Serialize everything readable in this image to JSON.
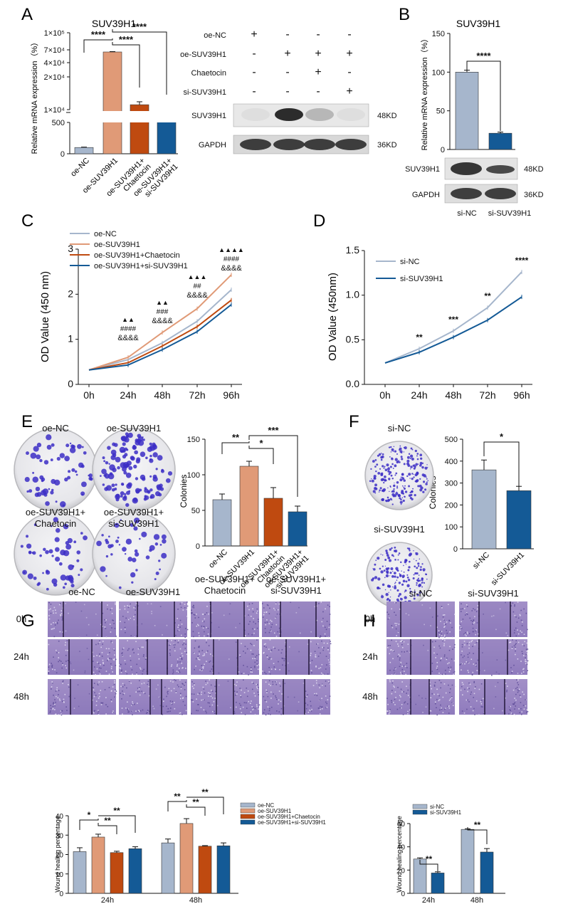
{
  "panel_labels": {
    "A": "A",
    "B": "B",
    "C": "C",
    "D": "D",
    "E": "E",
    "F": "F",
    "G": "G",
    "H": "H"
  },
  "colors": {
    "nc": "#a6b6cc",
    "oe": "#e09a77",
    "chae": "#bf4a10",
    "si": "#145a96",
    "blot": "#222222"
  },
  "stars": {
    "s1": "*",
    "s2": "**",
    "s3": "***",
    "s4": "****"
  },
  "chart_data": [
    {
      "id": "A_bar",
      "type": "bar",
      "title": "SUV39H1",
      "ylabel": "Relative mRNA expression（%）",
      "tick_labels": [
        "0",
        "500",
        "1×10⁴",
        "2×10⁴",
        "4×10⁴",
        "7×10⁴",
        "1×10⁵"
      ],
      "categories": [
        "oe-NC",
        "oe-SUV39H1",
        "oe-SUV39H1+ Chaetocin",
        "oe-SUV39H1+ si-SUV39H1"
      ],
      "values": [
        100,
        65000,
        11500,
        8500
      ],
      "errors": [
        6,
        800,
        900,
        300
      ],
      "significance": [
        "****",
        "****",
        "****"
      ]
    },
    {
      "id": "A_blot",
      "type": "table",
      "row_labels": [
        "oe-NC",
        "oe-SUV39H1",
        "Chaetocin",
        "si-SUV39H1"
      ],
      "matrix": [
        [
          "+",
          "-",
          "-",
          "-"
        ],
        [
          "-",
          "+",
          "+",
          "+"
        ],
        [
          "-",
          "-",
          "+",
          "-"
        ],
        [
          "-",
          "-",
          "-",
          "+"
        ]
      ],
      "bands": [
        "SUV39H1",
        "GAPDH"
      ],
      "sizes": [
        "48KD",
        "36KD"
      ],
      "suv_intensity": [
        0.05,
        0.95,
        0.25,
        0.05
      ]
    },
    {
      "id": "B_bar",
      "type": "bar",
      "title": "SUV39H1",
      "ylabel": "Relative mRNA expression（%）",
      "ylim": [
        0,
        150
      ],
      "yticks": [
        "0",
        "50",
        "100",
        "150"
      ],
      "categories": [
        "si-NC",
        "si-SUV39H1"
      ],
      "values": [
        100,
        21
      ],
      "errors": [
        2.5,
        1.5
      ],
      "significance": "****",
      "bands": [
        "SUV39H1",
        "GAPDH"
      ],
      "sizes": [
        "48KD",
        "36KD"
      ]
    },
    {
      "id": "C_line",
      "type": "line",
      "ylabel": "OD Value (450 nm)",
      "ylim": [
        0,
        3
      ],
      "yticks": [
        "0",
        "1",
        "2",
        "3"
      ],
      "x": [
        "0h",
        "24h",
        "48h",
        "72h",
        "96h"
      ],
      "series": [
        {
          "name": "oe-NC",
          "values": [
            0.32,
            0.55,
            0.92,
            1.4,
            2.1
          ]
        },
        {
          "name": "oe-SUV39H1",
          "values": [
            0.32,
            0.6,
            1.15,
            1.68,
            2.43
          ]
        },
        {
          "name": "oe-SUV39H1+Chaetocin",
          "values": [
            0.32,
            0.48,
            0.85,
            1.28,
            1.87
          ]
        },
        {
          "name": "oe-SUV39H1+si-SUV39H1",
          "values": [
            0.32,
            0.43,
            0.77,
            1.17,
            1.77
          ]
        }
      ],
      "annotations": [
        {
          "triangles": "▲▲",
          "hash": "####",
          "amp": "&&&&"
        },
        {
          "triangles": "▲▲",
          "hash": "###",
          "amp": "&&&&"
        },
        {
          "triangles": "▲▲▲",
          "hash": "##",
          "amp": "&&&&"
        },
        {
          "triangles": "▲▲▲▲",
          "hash": "####",
          "amp": "&&&&"
        }
      ]
    },
    {
      "id": "D_line",
      "type": "line",
      "ylabel": "OD Value (450nm)",
      "ylim": [
        0,
        1.5
      ],
      "yticks": [
        "0.0",
        "0.5",
        "1.0",
        "1.5"
      ],
      "x": [
        "0h",
        "24h",
        "48h",
        "72h",
        "96h"
      ],
      "series": [
        {
          "name": "si-NC",
          "values": [
            0.24,
            0.4,
            0.6,
            0.86,
            1.26
          ]
        },
        {
          "name": "si-SUV39H1",
          "values": [
            0.24,
            0.36,
            0.53,
            0.72,
            0.98
          ]
        }
      ],
      "significance": [
        "**",
        "***",
        "**",
        "****"
      ]
    },
    {
      "id": "E_bar",
      "type": "bar",
      "ylabel": "Colonies",
      "ylim": [
        0,
        150
      ],
      "yticks": [
        "0",
        "50",
        "100",
        "150"
      ],
      "categories": [
        "oe-NC",
        "oe-SUV39H1",
        "oe-SUV39H1+ Chaetocin",
        "oe-SUV39H1+ si-SUV39H1"
      ],
      "values": [
        65,
        112,
        67,
        48
      ],
      "errors": [
        8,
        7,
        15,
        8
      ],
      "significance": [
        "**",
        "*",
        "***"
      ],
      "plate_labels": [
        "oe-NC",
        "oe-SUV39H1",
        "oe-SUV39H1+ Chaetocin",
        "oe-SUV39H1+ si-SUV39H1"
      ]
    },
    {
      "id": "F_bar",
      "type": "bar",
      "ylabel": "Colonies",
      "ylim": [
        0,
        500
      ],
      "yticks": [
        "0",
        "100",
        "200",
        "300",
        "400",
        "500"
      ],
      "categories": [
        "si-NC",
        "si-SUV39H1"
      ],
      "values": [
        360,
        265
      ],
      "errors": [
        45,
        20
      ],
      "significance": "*",
      "plate_labels": [
        "si-NC",
        "si-SUV39H1"
      ]
    },
    {
      "id": "G_bar",
      "type": "bar",
      "ylabel": "Wound healing percentage",
      "ylim": [
        0,
        40
      ],
      "yticks": [
        "0",
        "10",
        "20",
        "30",
        "40"
      ],
      "categories": [
        "24h",
        "48h"
      ],
      "series": [
        {
          "name": "oe-NC",
          "values": [
            21.5,
            26.0
          ],
          "errors": [
            2,
            2
          ]
        },
        {
          "name": "oe-SUV39H1",
          "values": [
            29.0,
            36.0
          ],
          "errors": [
            1.5,
            2.5
          ]
        },
        {
          "name": "oe-SUV39H1+Chaetocin",
          "values": [
            21.0,
            24.3
          ],
          "errors": [
            0.7,
            0.3
          ]
        },
        {
          "name": "oe-SUV39H1+si-SUV39H1",
          "values": [
            23.0,
            24.5
          ],
          "errors": [
            1,
            1.5
          ]
        }
      ],
      "significance": [
        [
          "*",
          "**",
          "**"
        ],
        [
          "**",
          "**",
          "**"
        ]
      ],
      "col_labels": [
        "oe-NC",
        "oe-SUV39H1",
        "oe-SUV39H1+ Chaetocin",
        "oe-SUV39H1+ si-SUV39H1"
      ],
      "row_labels": [
        "0h",
        "24h",
        "48h"
      ]
    },
    {
      "id": "H_bar",
      "type": "bar",
      "ylabel": "Wound healing percentage",
      "ylim": [
        0,
        60
      ],
      "yticks": [
        "0",
        "20",
        "40",
        "60"
      ],
      "categories": [
        "24h",
        "48h"
      ],
      "series": [
        {
          "name": "si-NC",
          "values": [
            29.5,
            55.0
          ],
          "errors": [
            1,
            0.5
          ]
        },
        {
          "name": "si-SUV39H1",
          "values": [
            17.5,
            35.5
          ],
          "errors": [
            1,
            3
          ]
        }
      ],
      "significance": [
        "**",
        "**"
      ],
      "col_labels": [
        "si-NC",
        "si-SUV39H1"
      ],
      "row_labels": [
        "0h",
        "24h",
        "48h"
      ]
    }
  ]
}
